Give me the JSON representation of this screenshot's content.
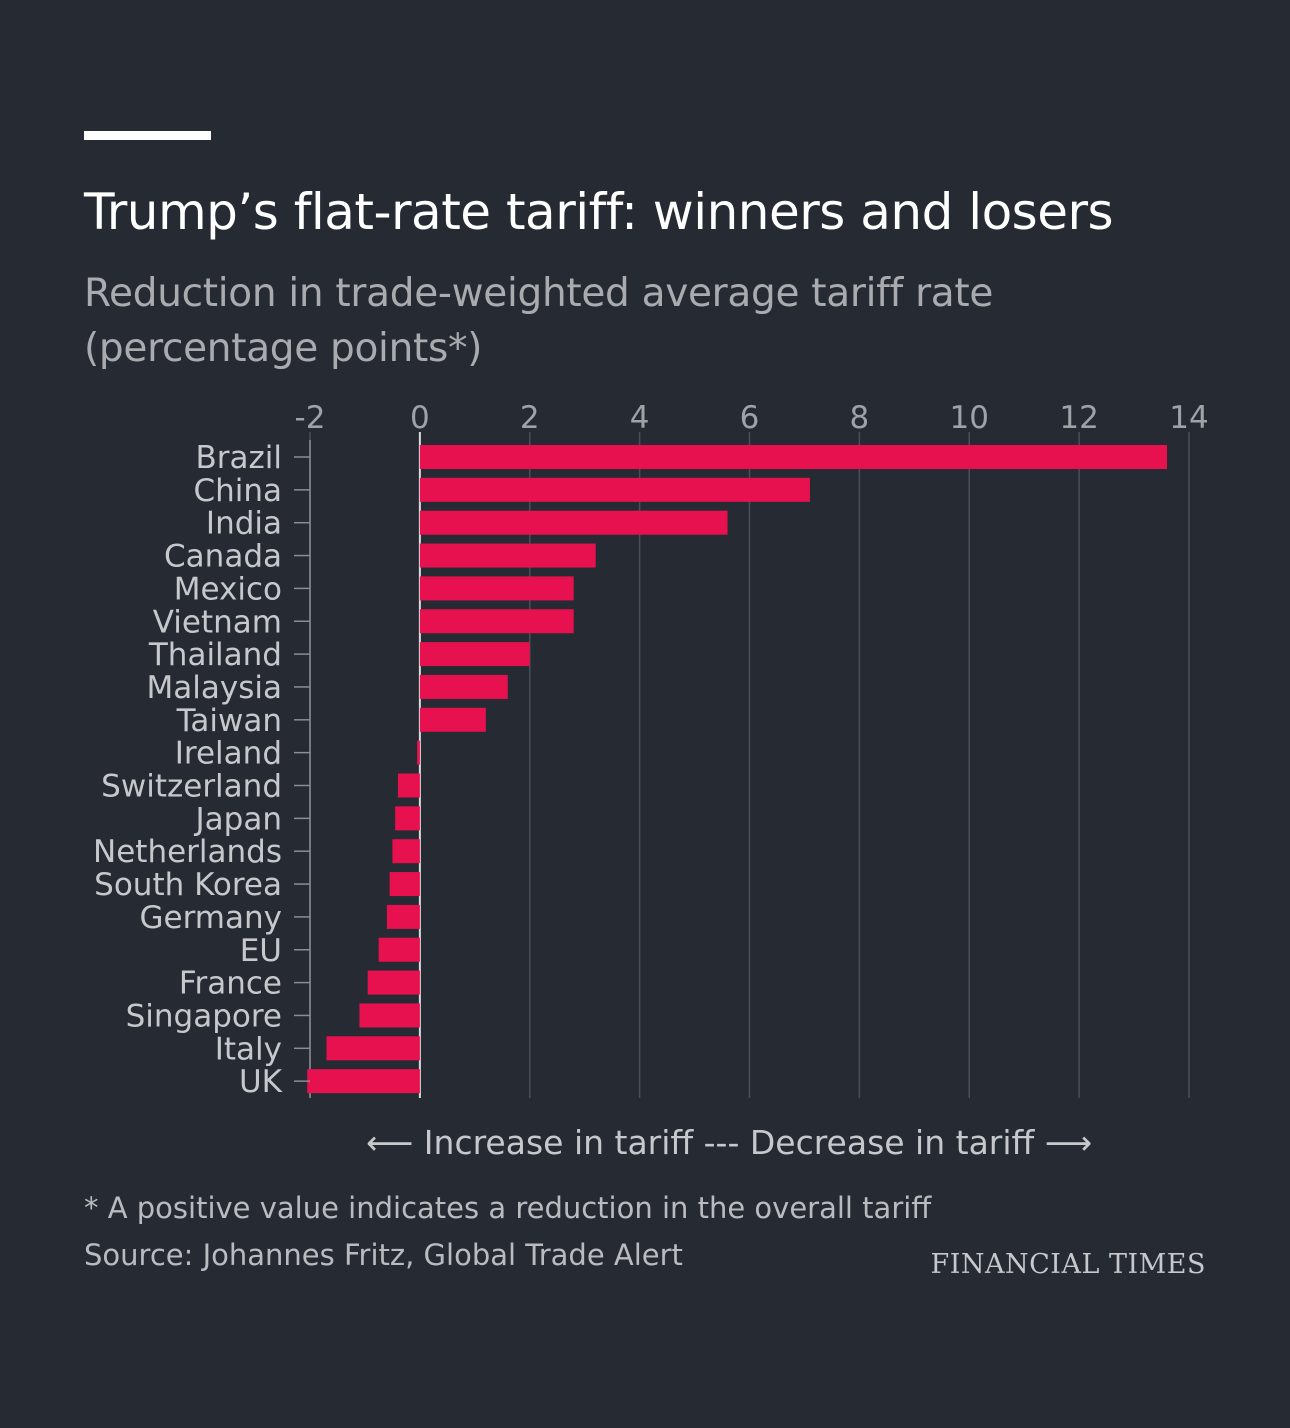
{
  "header": {
    "title": "Trump’s flat-rate tariff: winners and losers",
    "subtitle": "Reduction in trade-weighted average tariff rate (percentage points*)"
  },
  "chart_data": {
    "type": "bar",
    "orientation": "horizontal",
    "title": "Trump’s flat-rate tariff: winners and losers",
    "subtitle": "Reduction in trade-weighted average tariff rate (percentage points*)",
    "categories": [
      "Brazil",
      "China",
      "India",
      "Canada",
      "Mexico",
      "Vietnam",
      "Thailand",
      "Malaysia",
      "Taiwan",
      "Ireland",
      "Switzerland",
      "Japan",
      "Netherlands",
      "South Korea",
      "Germany",
      "EU",
      "France",
      "Singapore",
      "Italy",
      "UK"
    ],
    "values": [
      13.6,
      7.1,
      5.6,
      3.2,
      2.8,
      2.8,
      2.0,
      1.6,
      1.2,
      -0.05,
      -0.4,
      -0.45,
      -0.5,
      -0.55,
      -0.6,
      -0.75,
      -0.95,
      -1.1,
      -1.7,
      -2.05
    ],
    "xlim": [
      -2,
      14
    ],
    "xticks": [
      -2,
      0,
      2,
      4,
      6,
      8,
      10,
      12,
      14
    ],
    "xtick_labels": [
      "-2",
      "0",
      "2",
      "4",
      "6",
      "8",
      "10",
      "12",
      "14"
    ],
    "grid": true,
    "axis_position": "top",
    "bar_color": "#e8114f",
    "annotation": "⟵ Increase in tariff --- Decrease in tariff ⟶"
  },
  "footer": {
    "note": "* A positive value indicates a reduction in the overall tariff",
    "source": "Source: Johannes Fritz, Global Trade Alert",
    "logo_text": "FINANCIAL TIMES"
  },
  "colors": {
    "background": "#262a33",
    "bar": "#e8114f",
    "grid": "#4a4e57",
    "label": "#c6c8cb",
    "tick": "#9fa2a7"
  }
}
